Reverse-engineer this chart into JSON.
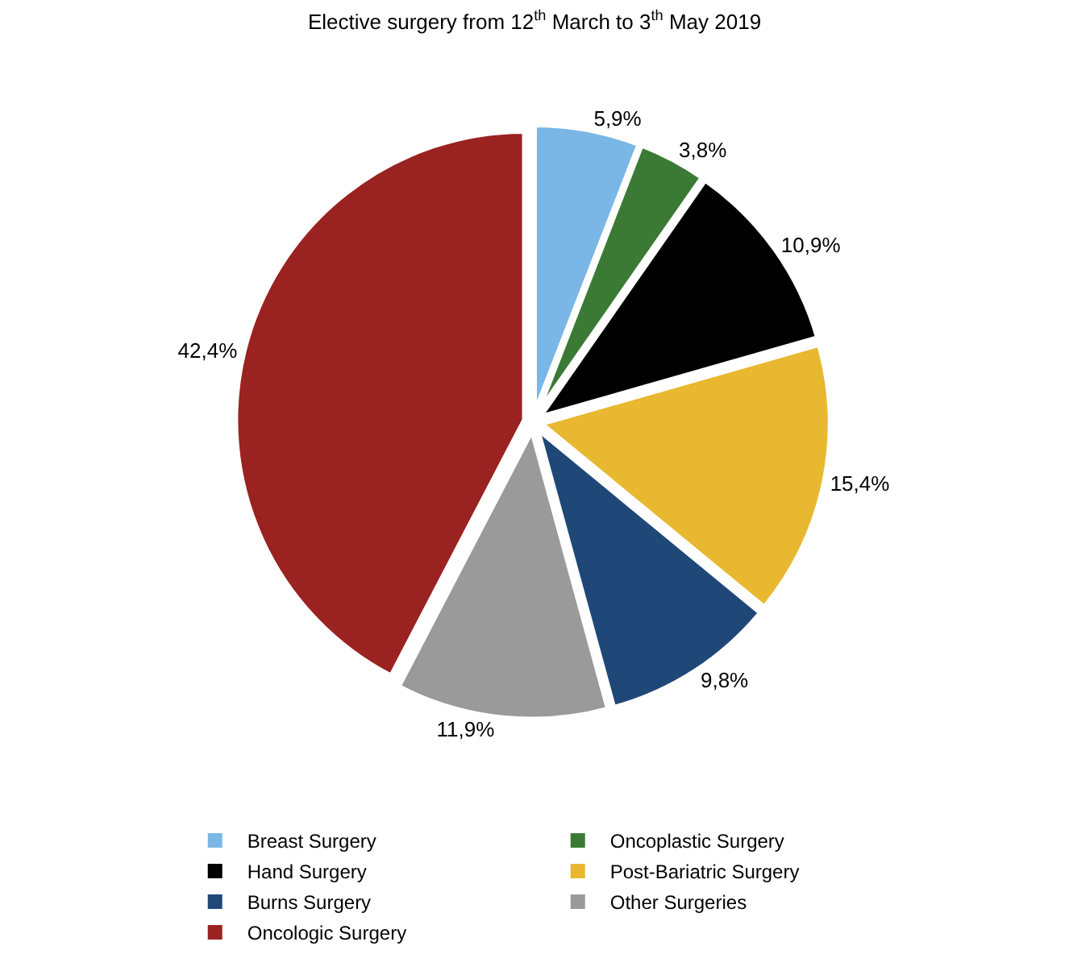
{
  "chart_data": {
    "type": "pie",
    "title": "Elective surgery from 12$^{th}$ March to 3$^{th}$ May 2019",
    "categories": [
      "Breast Surgery",
      "Oncoplastic Surgery",
      "Hand Surgery",
      "Post-Bariatric Surgery",
      "Burns Surgery",
      "Other Surgeries",
      "Oncologic Surgery"
    ],
    "values": [
      5.9,
      3.8,
      10.9,
      15.4,
      9.8,
      11.9,
      42.4
    ],
    "value_labels": [
      "5,9%",
      "3,8%",
      "10,9%",
      "15,4%",
      "9,8%",
      "11,9%",
      "42,4%"
    ],
    "colors": [
      "#7ab6e6",
      "#3b7a35",
      "#000000",
      "#e8b830",
      "#1f4878",
      "#9a9a9a",
      "#9a2220"
    ],
    "legend": "bottom"
  }
}
